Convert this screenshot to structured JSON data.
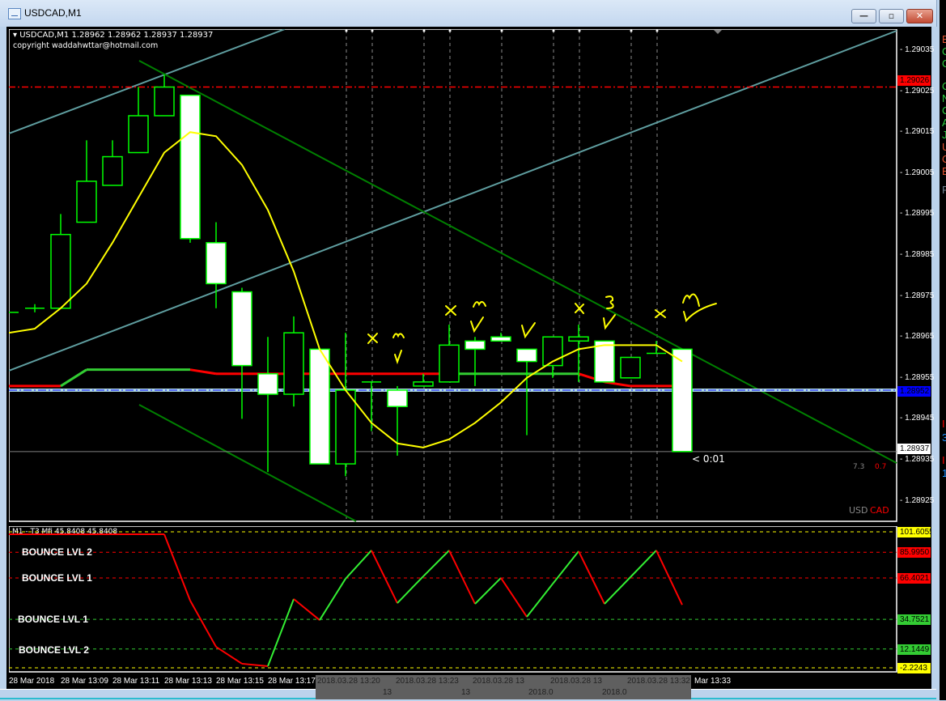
{
  "window": {
    "title": "USDCAD,M1",
    "minimize_label": "—",
    "maximize_label": "▫",
    "close_label": "✕"
  },
  "chart": {
    "header": "USDCAD,M1  1.28962 1.28962 1.28937 1.28937",
    "copyright": "copyright waddahwttar@hotmail.com",
    "countdown": "< 0:01",
    "strength": {
      "usd_value": "7.3",
      "cad_value": "0.7",
      "usd_label": "USD",
      "cad_label": "CAD"
    },
    "price_tags": {
      "red_line": "1.29026",
      "blue_line": "1.28952",
      "bid": "1.28937"
    },
    "colors": {
      "bull_border": "#00ff00",
      "bear_fill": "#ffffff",
      "ma": "#ffff00",
      "trend_up": "#33cc33",
      "trend_down": "#ff0000",
      "channel": "#5f9ea0",
      "trendline": "#008000",
      "resistance": "#ff0000",
      "level_blue": "#add8e6"
    }
  },
  "subwindow": {
    "header": "M1 - T3 Mfi  45.8408 45.8408",
    "bounce_labels": [
      "BOUNCE LVL 2",
      "BOUNCE LVL 1",
      "BOUNCE LVL 1",
      "BOUNCE LVL 2"
    ],
    "level_tags": [
      "101.6055",
      "85.9950",
      "66.4021",
      "34.7521",
      "12.1449",
      "-2.2243"
    ]
  },
  "time_axis": {
    "labels": [
      "28 Mar 2018",
      "28 Mar 13:09",
      "28 Mar 13:11",
      "28 Mar 13:13",
      "28 Mar 13:15",
      "28 Mar 13:17"
    ],
    "vline_labels": [
      "2018.03.28 13:20",
      "13",
      "2018.03.28 13:23",
      "13",
      "2018.03.28 13",
      "2018.0",
      "2018.03.28 13",
      "2018.0",
      "2018.03.28 13:32"
    ],
    "last_label": "Mar 13:33"
  },
  "right_panel": {
    "letters": [
      {
        "t": "B",
        "c": "#e0522f"
      },
      {
        "t": "O",
        "c": "#2ecc40"
      },
      {
        "t": "O",
        "c": "#2ecc40"
      },
      {
        "t": "O",
        "c": "#2ecc40"
      },
      {
        "t": "N",
        "c": "#2ecc40"
      },
      {
        "t": "O",
        "c": "#2ecc40"
      },
      {
        "t": "A",
        "c": "#2ecc40"
      },
      {
        "t": "J",
        "c": "#2ecc40"
      },
      {
        "t": "U",
        "c": "#e0522f"
      },
      {
        "t": "O",
        "c": "#e0522f"
      },
      {
        "t": "E",
        "c": "#e0522f"
      },
      {
        "t": "F",
        "c": "#708090"
      },
      {
        "t": "I",
        "c": "#ff0000"
      },
      {
        "t": "3",
        "c": "#1e90ff"
      },
      {
        "t": "I",
        "c": "#ff0000"
      },
      {
        "t": "1",
        "c": "#1e90ff"
      }
    ]
  },
  "chart_data": [
    {
      "type": "candlestick",
      "title": "USDCAD,M1",
      "ylim": [
        1.2892,
        1.29045
      ],
      "yticks": [
        "1.29035",
        "1.29025",
        "1.29015",
        "1.29005",
        "1.28995",
        "1.28985",
        "1.28975",
        "1.28965",
        "1.28955",
        "1.28945",
        "1.28935",
        "1.28925"
      ],
      "candles": [
        {
          "o": 1.28971,
          "h": 1.28971,
          "l": 1.28971,
          "c": 1.28971
        },
        {
          "o": 1.28972,
          "h": 1.28973,
          "l": 1.28971,
          "c": 1.28972
        },
        {
          "o": 1.28972,
          "h": 1.28995,
          "l": 1.28972,
          "c": 1.2899
        },
        {
          "o": 1.28993,
          "h": 1.29013,
          "l": 1.28993,
          "c": 1.29003
        },
        {
          "o": 1.29002,
          "h": 1.29013,
          "l": 1.29002,
          "c": 1.29009
        },
        {
          "o": 1.2901,
          "h": 1.29026,
          "l": 1.2901,
          "c": 1.29019
        },
        {
          "o": 1.29019,
          "h": 1.29029,
          "l": 1.29019,
          "c": 1.29026
        },
        {
          "o": 1.29024,
          "h": 1.29024,
          "l": 1.28988,
          "c": 1.28989
        },
        {
          "o": 1.28988,
          "h": 1.28993,
          "l": 1.28972,
          "c": 1.28978
        },
        {
          "o": 1.28976,
          "h": 1.28977,
          "l": 1.28945,
          "c": 1.28958
        },
        {
          "o": 1.28956,
          "h": 1.28965,
          "l": 1.28932,
          "c": 1.28951
        },
        {
          "o": 1.28951,
          "h": 1.2897,
          "l": 1.28948,
          "c": 1.28966
        },
        {
          "o": 1.28962,
          "h": 1.28962,
          "l": 1.28934,
          "c": 1.28934
        },
        {
          "o": 1.28934,
          "h": 1.28966,
          "l": 1.28931,
          "c": 1.28952
        },
        {
          "o": 1.28954,
          "h": 1.28954,
          "l": 1.28942,
          "c": 1.28954
        },
        {
          "o": 1.28952,
          "h": 1.28953,
          "l": 1.28936,
          "c": 1.28948
        },
        {
          "o": 1.28953,
          "h": 1.28956,
          "l": 1.28953,
          "c": 1.28954
        },
        {
          "o": 1.28954,
          "h": 1.28968,
          "l": 1.28954,
          "c": 1.28963
        },
        {
          "o": 1.28964,
          "h": 1.28965,
          "l": 1.28953,
          "c": 1.28962
        },
        {
          "o": 1.28965,
          "h": 1.28966,
          "l": 1.28964,
          "c": 1.28964
        },
        {
          "o": 1.28962,
          "h": 1.28962,
          "l": 1.28941,
          "c": 1.28959
        },
        {
          "o": 1.28958,
          "h": 1.28965,
          "l": 1.28955,
          "c": 1.28965
        },
        {
          "o": 1.28964,
          "h": 1.28968,
          "l": 1.28954,
          "c": 1.28965
        },
        {
          "o": 1.28964,
          "h": 1.28964,
          "l": 1.28954,
          "c": 1.28954
        },
        {
          "o": 1.28955,
          "h": 1.2896,
          "l": 1.28955,
          "c": 1.2896
        },
        {
          "o": 1.28961,
          "h": 1.28964,
          "l": 1.28961,
          "c": 1.28961
        },
        {
          "o": 1.28962,
          "h": 1.28962,
          "l": 1.28937,
          "c": 1.28937
        }
      ],
      "moving_average": [
        1.28966,
        1.28967,
        1.28972,
        1.28978,
        1.28988,
        1.28999,
        1.2901,
        1.29015,
        1.29014,
        1.29007,
        1.28996,
        1.28981,
        1.28962,
        1.28952,
        1.28944,
        1.28939,
        1.28938,
        1.2894,
        1.28944,
        1.28949,
        1.28955,
        1.28959,
        1.28962,
        1.28963,
        1.28963,
        1.28963,
        1.28959
      ],
      "trend_line": {
        "values": [
          1.28953,
          1.28953,
          1.28953,
          1.28957,
          1.28957,
          1.28957,
          1.28957,
          1.28957,
          1.28956,
          1.28956,
          1.28956,
          1.28956,
          1.28956,
          1.28956,
          1.28956,
          1.28956,
          1.28956,
          1.28956,
          1.28956,
          1.28956,
          1.28956,
          1.28956,
          1.28956,
          1.28954,
          1.28953,
          1.28953,
          1.28953
        ],
        "direction": [
          "down",
          "down",
          "down",
          "up",
          "up",
          "up",
          "up",
          "up",
          "down",
          "down",
          "down",
          "down",
          "down",
          "down",
          "down",
          "down",
          "down",
          "down",
          "up",
          "up",
          "up",
          "up",
          "up",
          "down",
          "down",
          "down",
          "down"
        ]
      },
      "horizontal_levels": [
        {
          "price": 1.29026,
          "style": "dash-dot",
          "color": "#ff0000"
        },
        {
          "price": 1.28952,
          "style": "dash-dot",
          "color": "#0000ff"
        },
        {
          "price": 1.28937,
          "style": "solid",
          "color": "#808080"
        }
      ]
    },
    {
      "type": "line",
      "title": "M1 - T3 Mfi",
      "ylim": [
        -2.2243,
        101.6055
      ],
      "levels": [
        101.6055,
        85.995,
        66.4021,
        34.7521,
        12.1449,
        -2.2243
      ],
      "level_colors": [
        "#ffff00",
        "#ff0000",
        "#ff0000",
        "#33cc33",
        "#33cc33",
        "#ffff00"
      ],
      "values": [
        99.75,
        99.75,
        99.75,
        99.75,
        99.75,
        99.75,
        99.75,
        49.1,
        13.8,
        0.9,
        -1.0,
        50.3,
        34.2,
        65.8,
        87.4,
        47.2,
        67.6,
        87.4,
        46.6,
        66.4,
        36.7,
        61.9,
        86.8,
        46.6,
        67.0,
        87.4,
        45.8408
      ]
    }
  ]
}
